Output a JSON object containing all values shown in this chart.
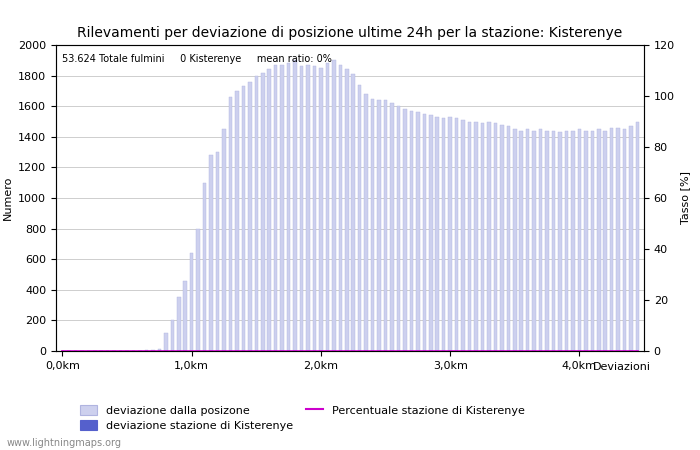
{
  "title": "Rilevamenti per deviazione di posizione ultime 24h per la stazione: Kisterenye",
  "annotation": "53.624 Totale fulmini     0 Kisterenye     mean ratio: 0%",
  "ylabel_left": "Numero",
  "ylabel_right": "Tasso [%]",
  "xlabel": "Deviazioni",
  "xtick_labels": [
    "0,0km",
    "1,0km",
    "2,0km",
    "3,0km",
    "4,0km"
  ],
  "ylim_left": [
    0,
    2000
  ],
  "ylim_right": [
    0,
    120
  ],
  "yticks_left": [
    0,
    200,
    400,
    600,
    800,
    1000,
    1200,
    1400,
    1600,
    1800,
    2000
  ],
  "yticks_right": [
    0,
    20,
    40,
    60,
    80,
    100,
    120
  ],
  "bar_color_light": "#cdd0ee",
  "bar_color_dark": "#5560cc",
  "bar_edge_color": "#b0b4e0",
  "line_color": "#cc00cc",
  "background_color": "#ffffff",
  "grid_color": "#bbbbbb",
  "title_fontsize": 10,
  "label_fontsize": 8,
  "tick_fontsize": 8,
  "legend_fontsize": 8,
  "watermark": "www.lightningmaps.org",
  "legend_labels": [
    "deviazione dalla posizone",
    "deviazione stazione di Kisterenye",
    "Percentuale stazione di Kisterenye"
  ],
  "n_bins": 90,
  "bar_values": [
    2,
    1,
    0,
    0,
    0,
    1,
    0,
    1,
    1,
    0,
    1,
    2,
    3,
    4,
    8,
    15,
    120,
    200,
    350,
    460,
    640,
    800,
    1100,
    1280,
    1300,
    1450,
    1660,
    1700,
    1730,
    1760,
    1800,
    1820,
    1840,
    1870,
    1870,
    1880,
    1900,
    1860,
    1870,
    1860,
    1850,
    1880,
    1900,
    1870,
    1840,
    1810,
    1740,
    1680,
    1650,
    1640,
    1640,
    1620,
    1600,
    1580,
    1570,
    1560,
    1550,
    1540,
    1530,
    1520,
    1530,
    1520,
    1510,
    1500,
    1500,
    1490,
    1500,
    1490,
    1480,
    1470,
    1450,
    1440,
    1450,
    1440,
    1450,
    1440,
    1440,
    1430,
    1440,
    1440,
    1450,
    1440,
    1440,
    1450,
    1440,
    1460,
    1460,
    1450,
    1470,
    1500
  ],
  "station_values": [
    0,
    0,
    0,
    0,
    0,
    0,
    0,
    0,
    0,
    0,
    0,
    0,
    0,
    0,
    0,
    0,
    0,
    0,
    0,
    0,
    0,
    0,
    0,
    0,
    0,
    0,
    0,
    0,
    0,
    0,
    0,
    0,
    0,
    0,
    0,
    0,
    0,
    0,
    0,
    0,
    0,
    0,
    0,
    0,
    0,
    0,
    0,
    0,
    0,
    0,
    0,
    0,
    0,
    0,
    0,
    0,
    0,
    0,
    0,
    0,
    0,
    0,
    0,
    0,
    0,
    0,
    0,
    0,
    0,
    0,
    0,
    0,
    0,
    0,
    0,
    0,
    0,
    0,
    0,
    0,
    0,
    0,
    0,
    0,
    0,
    0,
    0,
    0,
    0,
    0
  ]
}
